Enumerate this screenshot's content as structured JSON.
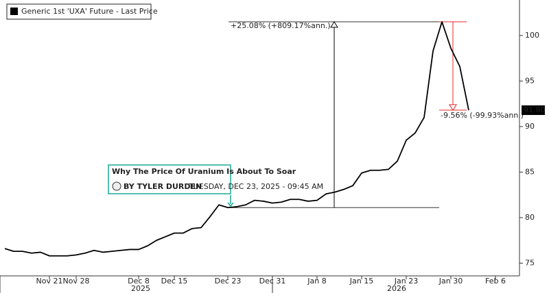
{
  "chart_data": {
    "type": "line",
    "legend": "Generic 1st 'UXA' Future - Last Price",
    "categories": [
      null,
      null,
      null,
      null,
      null,
      "Nov 21",
      null,
      null,
      "Nov 28",
      null,
      null,
      null,
      null,
      null,
      null,
      "Dec 8",
      null,
      null,
      null,
      "Dec 15",
      null,
      null,
      null,
      null,
      null,
      "Dec 23",
      null,
      null,
      null,
      null,
      "Dec 31",
      null,
      null,
      null,
      null,
      "Jan 8",
      null,
      null,
      null,
      null,
      "Jan 15",
      null,
      null,
      null,
      null,
      "Jan 23",
      null,
      null,
      null,
      null,
      "Jan 30",
      null,
      null,
      null,
      null,
      "Feb 6",
      null,
      null
    ],
    "years": [
      "2025",
      "2026"
    ],
    "values": [
      76.6,
      76.3,
      76.3,
      76.1,
      76.2,
      75.8,
      75.8,
      75.8,
      75.9,
      76.1,
      76.4,
      76.2,
      76.3,
      76.4,
      76.5,
      76.5,
      76.9,
      77.5,
      77.9,
      78.3,
      78.3,
      78.8,
      78.9,
      80.1,
      81.4,
      81.1,
      81.2,
      81.4,
      81.9,
      81.8,
      81.6,
      81.7,
      82.0,
      82.0,
      81.8,
      81.9,
      82.6,
      82.8,
      83.1,
      83.5,
      84.9,
      85.2,
      85.2,
      85.3,
      86.2,
      88.5,
      89.3,
      91.0,
      98.3,
      101.5,
      98.6,
      96.6,
      91.8,
      null,
      null,
      null,
      null,
      null
    ],
    "value_labels": [
      null,
      null,
      null,
      null,
      null,
      null,
      null,
      null,
      null,
      null,
      null,
      null,
      null,
      null,
      null,
      null,
      null,
      null,
      null,
      null,
      null,
      null,
      null,
      null,
      null,
      null,
      null,
      null,
      null,
      null,
      null,
      null,
      null,
      null,
      null,
      null,
      null,
      null,
      null,
      null,
      null,
      null,
      null,
      null,
      null,
      null,
      null,
      null,
      null,
      null,
      null,
      null,
      "91.80",
      null,
      null,
      null,
      null,
      null
    ],
    "color": "#000000",
    "ylim": [
      73.6,
      103.9
    ],
    "yticks": [
      75,
      80,
      85,
      90,
      95,
      100
    ],
    "annotations": [
      {
        "text": "+25.08% (+809.17%ann.)",
        "color": "#000000"
      },
      {
        "text": "-9.56% (-99.93%ann.)",
        "color": "#e8262a"
      }
    ],
    "news_card": {
      "headline": "Why The Price Of Uranium Is About To Soar",
      "author": "BY TYLER DURDEN",
      "date": "TUESDAY, DEC 23, 2025 - 09:45 AM",
      "color": "#1aa895"
    }
  }
}
